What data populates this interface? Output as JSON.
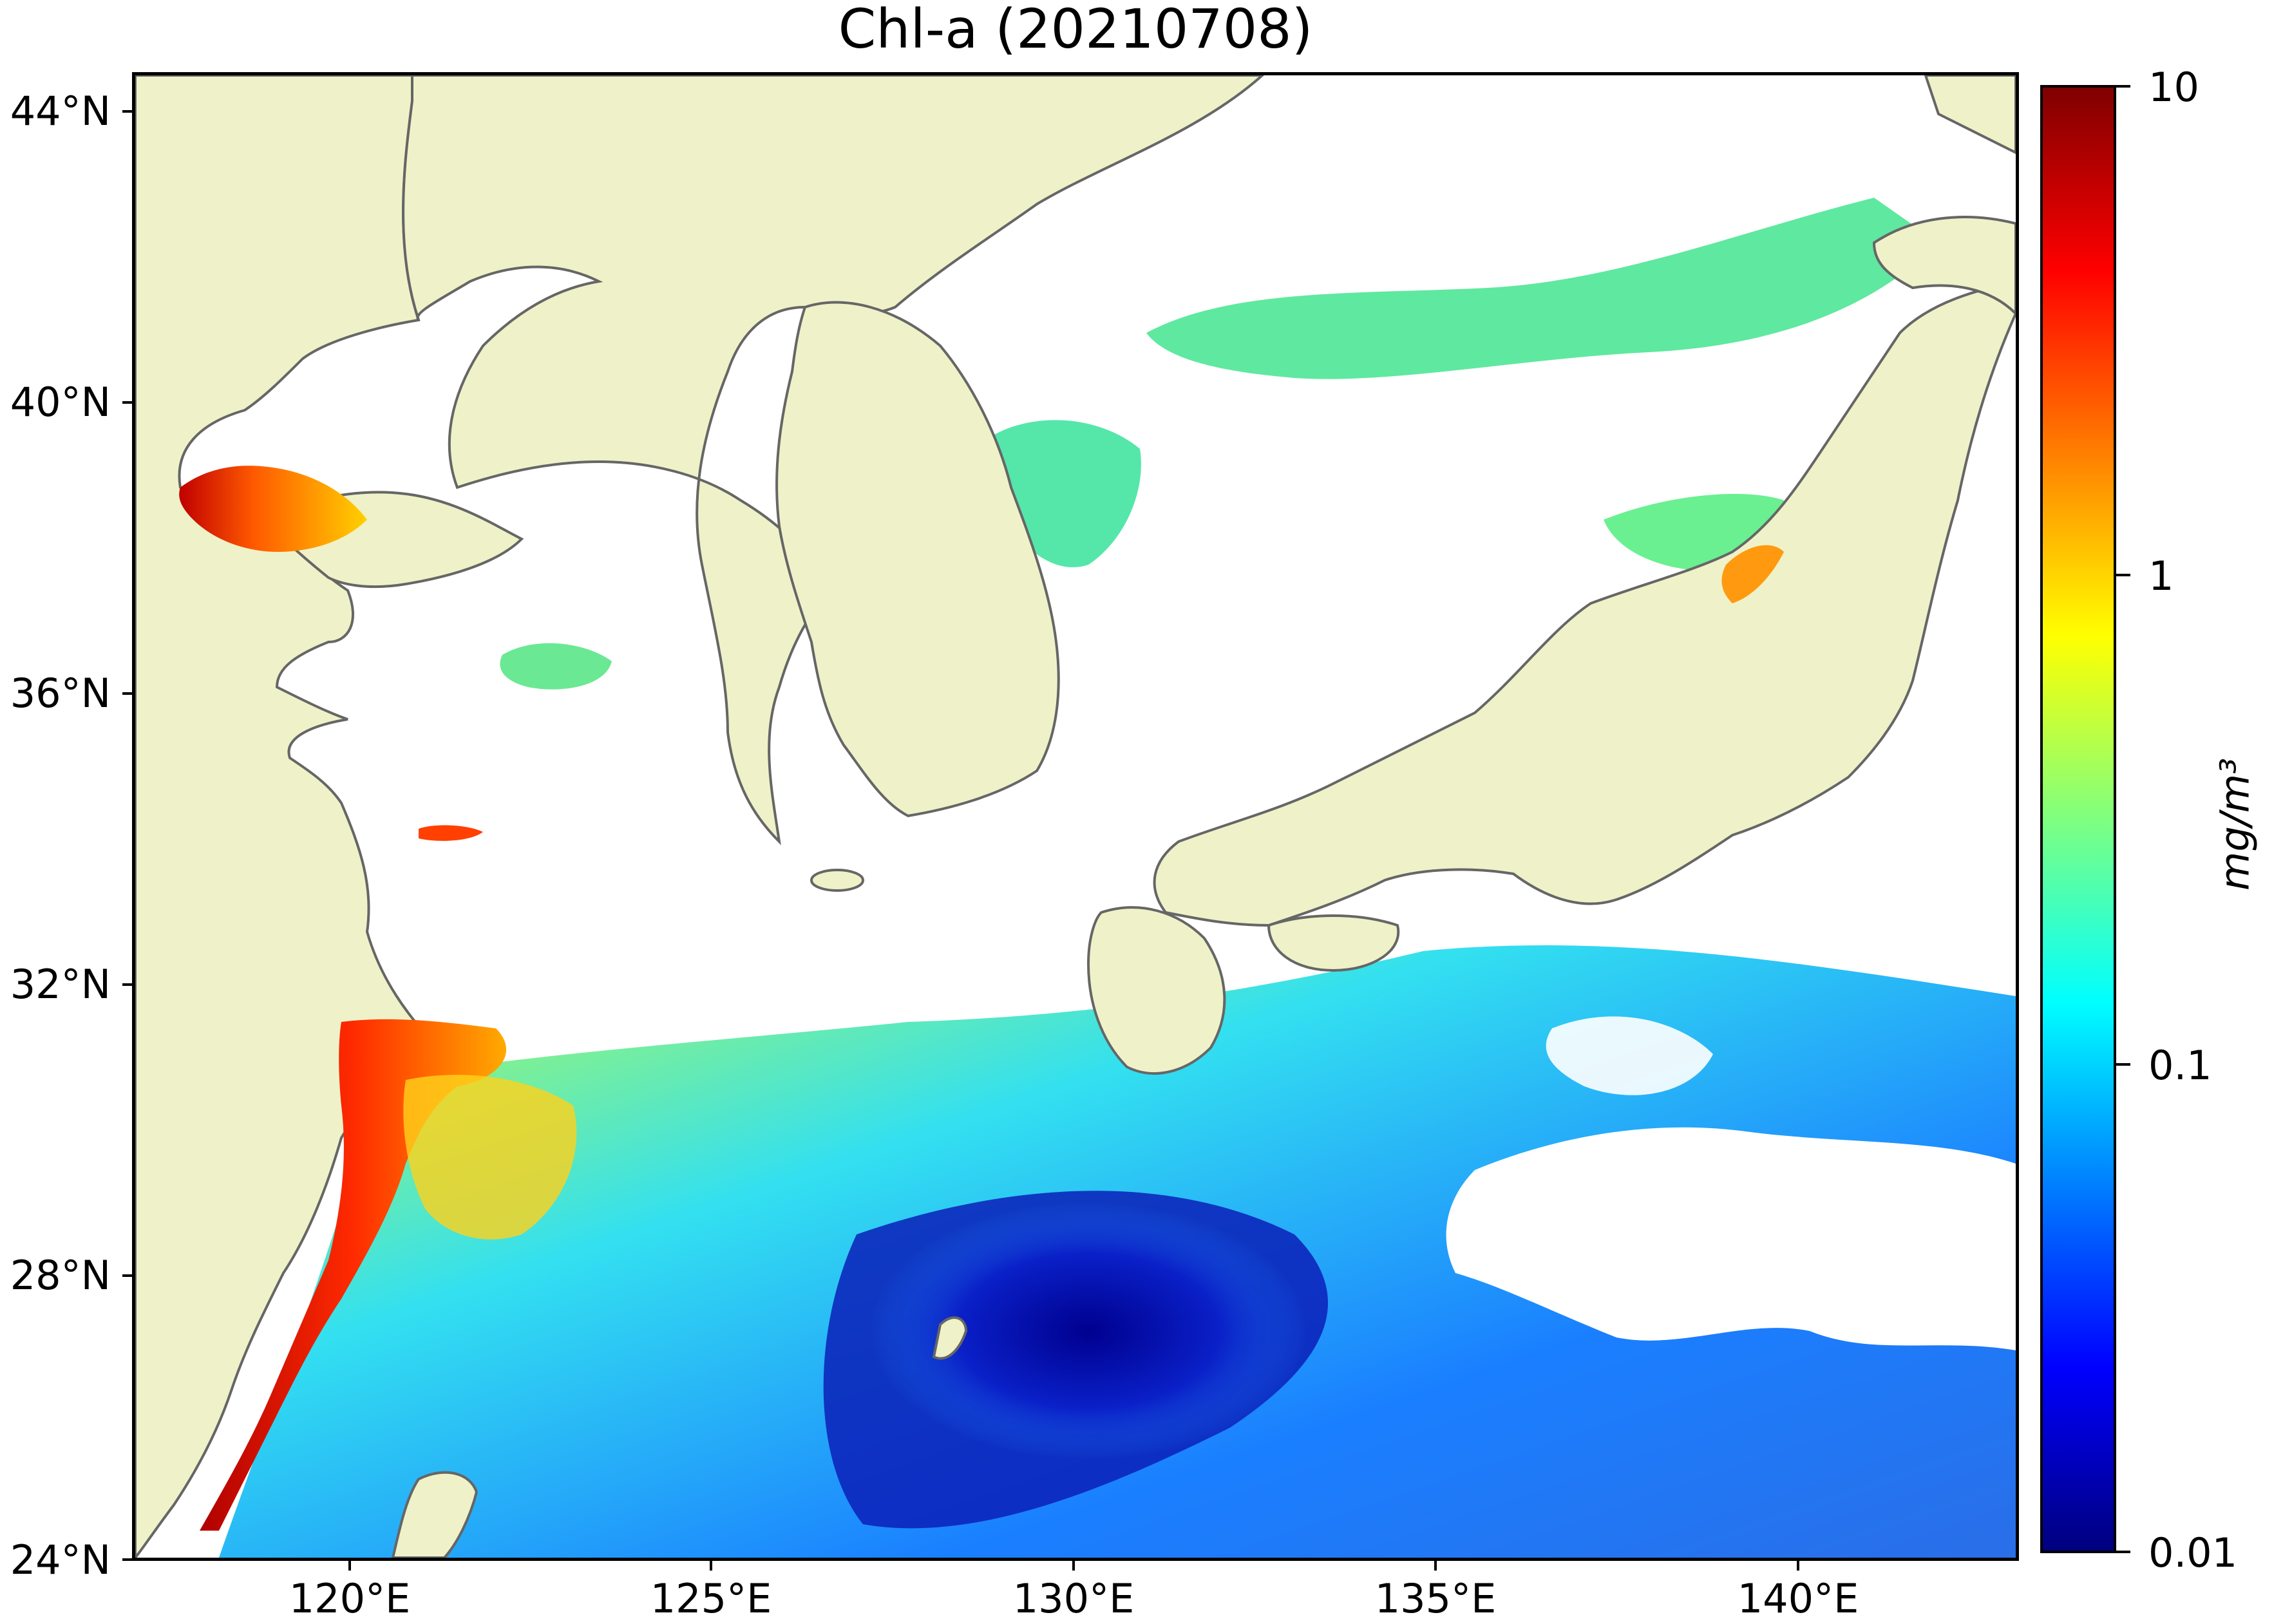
{
  "title": "Chl-a (20210708)",
  "map": {
    "lat_ticks": [
      "44°N",
      "40°N",
      "36°N",
      "32°N",
      "28°N",
      "24°N"
    ],
    "lon_ticks": [
      "120°E",
      "125°E",
      "130°E",
      "135°E",
      "140°E"
    ],
    "lat_range": [
      24,
      44.5
    ],
    "lon_range": [
      117,
      143
    ],
    "colors": {
      "land": "#eff2c8",
      "coastline": "#666666",
      "cloud": "#ffffff"
    }
  },
  "colorbar": {
    "unit": "mg/m³",
    "scale": "log",
    "range": [
      0.01,
      10
    ],
    "major_labels": [
      "10",
      "1",
      "0.1",
      "0.01"
    ],
    "colormap": "jet"
  }
}
